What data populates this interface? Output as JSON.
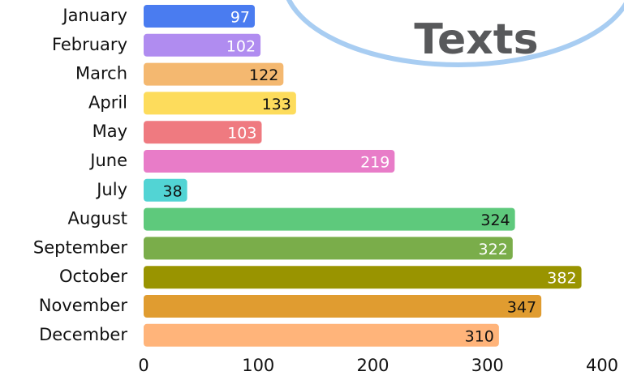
{
  "chart_data": {
    "type": "bar",
    "orientation": "horizontal",
    "annotation": "Texts",
    "categories": [
      "January",
      "February",
      "March",
      "April",
      "May",
      "June",
      "July",
      "August",
      "September",
      "October",
      "November",
      "December"
    ],
    "values": [
      97,
      102,
      122,
      133,
      103,
      219,
      38,
      324,
      322,
      382,
      347,
      310
    ],
    "colors": [
      "#4a7cf0",
      "#b08cf0",
      "#f4b870",
      "#fddc5c",
      "#ef7a80",
      "#e87cc8",
      "#52d4d4",
      "#5ec97c",
      "#7aad4a",
      "#999400",
      "#e09c30",
      "#ffb47a"
    ],
    "label_colors": [
      "#ffffff",
      "#ffffff",
      "#111111",
      "#111111",
      "#ffffff",
      "#ffffff",
      "#111111",
      "#111111",
      "#ffffff",
      "#ffffff",
      "#111111",
      "#111111"
    ],
    "xlim": [
      0,
      400
    ],
    "xticks": [
      0,
      100,
      200,
      300,
      400
    ],
    "grid": false
  }
}
